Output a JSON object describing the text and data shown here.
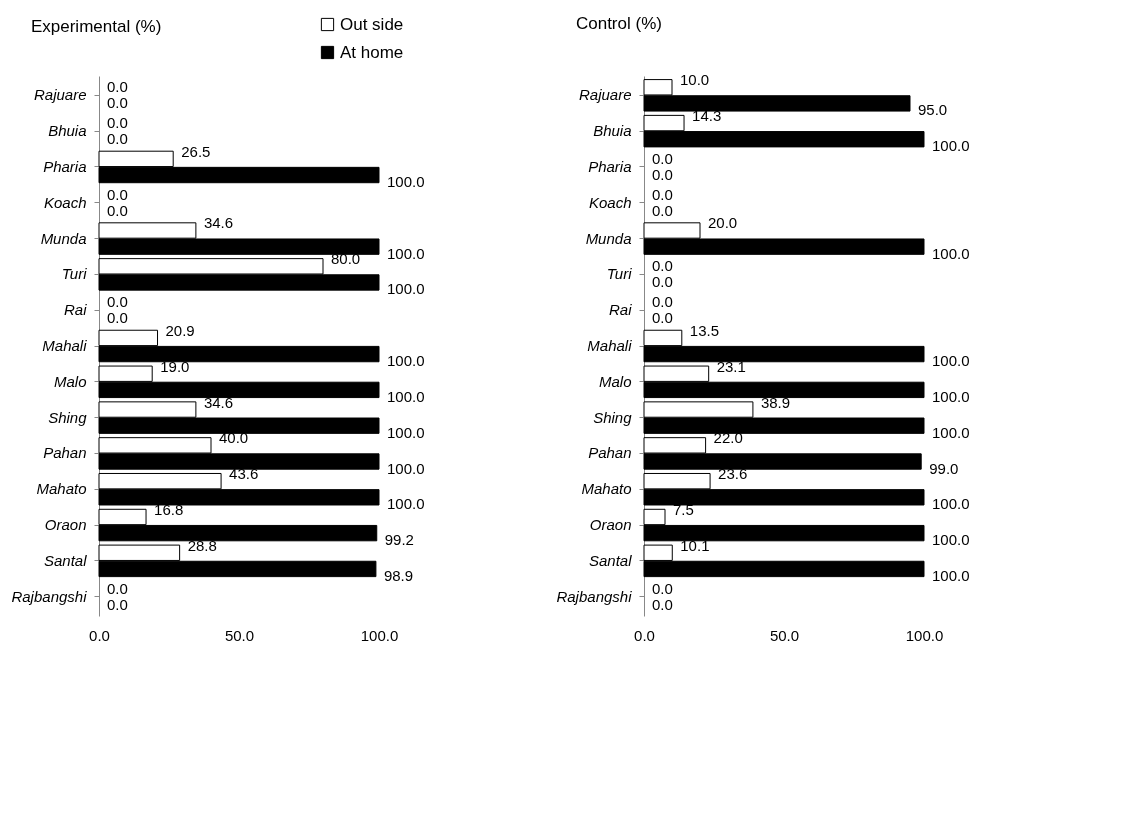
{
  "chart_data": [
    {
      "type": "bar",
      "orientation": "horizontal",
      "title": "Experimental (%)",
      "categories": [
        "Rajuare",
        "Bhuia",
        "Pharia",
        "Koach",
        "Munda",
        "Turi",
        "Rai",
        "Mahali",
        "Malo",
        "Shing",
        "Pahan",
        "Mahato",
        "Oraon",
        "Santal",
        "Rajbangshi"
      ],
      "series": [
        {
          "name": "Out side",
          "color": "#ffffff",
          "values": [
            0,
            0,
            26.5,
            0,
            34.6,
            80.0,
            0,
            20.9,
            19.0,
            34.6,
            40.0,
            43.6,
            16.8,
            28.8,
            0
          ],
          "value_labels": [
            "0.0",
            "0.0",
            "26.5",
            "0.0",
            "34.6",
            "80.0",
            "0.0",
            "20.9",
            "19.0",
            "34.6",
            "40.0",
            "43.6",
            "16.8",
            "28.8",
            "0.0"
          ]
        },
        {
          "name": "At home",
          "color": "#000000",
          "values": [
            0,
            0,
            100,
            0,
            100,
            100,
            0,
            100,
            100,
            100,
            100,
            100,
            99.2,
            98.9,
            0
          ],
          "value_labels": [
            "0.0",
            "0.0",
            "100.0",
            "0.0",
            "100.0",
            "100.0",
            "0.0",
            "100.0",
            "100.0",
            "100.0",
            "100.0",
            "100.0",
            "99.2",
            "98.9",
            "0.0"
          ]
        }
      ],
      "xlim": [
        0,
        100
      ],
      "xticks": [
        {
          "value": 0,
          "label": "0.0"
        },
        {
          "value": 50,
          "label": "50.0"
        },
        {
          "value": 100,
          "label": "100.0"
        }
      ],
      "grid": false,
      "legend": "top right"
    },
    {
      "type": "bar",
      "orientation": "horizontal",
      "title": "Control (%)",
      "categories": [
        "Rajuare",
        "Bhuia",
        "Pharia",
        "Koach",
        "Munda",
        "Turi",
        "Rai",
        "Mahali",
        "Malo",
        "Shing",
        "Pahan",
        "Mahato",
        "Oraon",
        "Santal",
        "Rajbangshi"
      ],
      "series": [
        {
          "name": "Out side",
          "color": "#f2f2f2",
          "values": [
            10.0,
            14.3,
            0,
            0,
            20.0,
            0,
            0,
            13.5,
            23.1,
            38.9,
            22.0,
            23.6,
            7.5,
            10.1,
            0
          ],
          "value_labels": [
            "10.0",
            "14.3",
            "0.0",
            "0.0",
            "20.0",
            "0.0",
            "0.0",
            "13.5",
            "23.1",
            "38.9",
            "22.0",
            "23.6",
            "7.5",
            "10.1",
            "0.0"
          ]
        },
        {
          "name": "At home",
          "color": "#000000",
          "values": [
            95.0,
            100,
            0,
            0,
            100,
            0,
            0,
            100,
            100,
            100,
            99.0,
            100,
            100,
            100,
            0
          ],
          "value_labels": [
            "95.0",
            "100.0",
            "0.0",
            "0.0",
            "100.0",
            "0.0",
            "0.0",
            "100.0",
            "100.0",
            "100.0",
            "99.0",
            "100.0",
            "100.0",
            "100.0",
            "0.0"
          ]
        }
      ],
      "xlim": [
        0,
        100
      ],
      "xticks": [
        {
          "value": 0,
          "label": "0.0"
        },
        {
          "value": 50,
          "label": "50.0"
        },
        {
          "value": 100,
          "label": "100.0"
        }
      ],
      "grid": false,
      "legend": "top right"
    }
  ]
}
